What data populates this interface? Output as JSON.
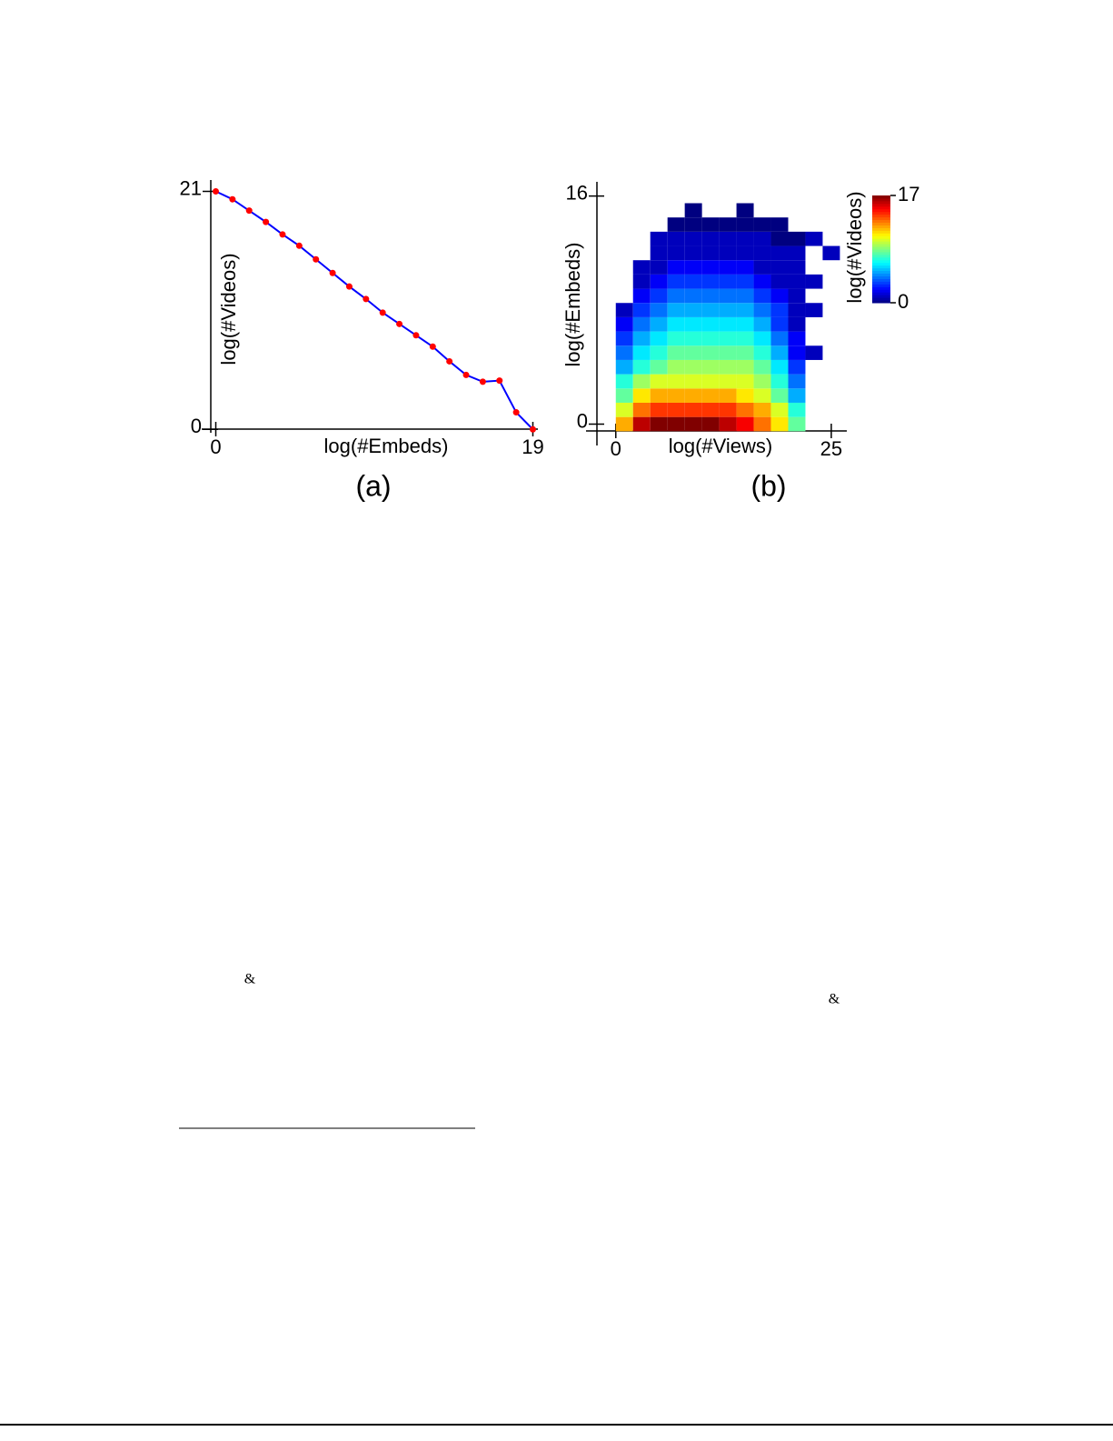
{
  "chart_data": [
    {
      "type": "line",
      "caption": "(a)",
      "x_label": "log(#Embeds)",
      "y_label": "log(#Videos)",
      "x": [
        0,
        1,
        2,
        3,
        4,
        5,
        6,
        7,
        8,
        9,
        10,
        11,
        12,
        13,
        14,
        15,
        16,
        17,
        18,
        19
      ],
      "series": [
        {
          "name": "log(#Videos)",
          "color": "#0000ff",
          "marker_color": "#ff0000",
          "values": [
            21,
            20.3,
            19.3,
            18.3,
            17.2,
            16.2,
            15,
            13.8,
            12.6,
            11.5,
            10.3,
            9.3,
            8.3,
            7.3,
            6,
            4.8,
            4.2,
            4.3,
            1.5,
            0
          ]
        }
      ],
      "xlim": [
        -0.3,
        19.3
      ],
      "ylim": [
        -0.3,
        22
      ],
      "xticks": [
        0,
        19
      ],
      "yticks": [
        0,
        21
      ]
    },
    {
      "type": "heatmap",
      "caption": "(b)",
      "x_label": "log(#Views)",
      "y_label": "log(#Embeds)",
      "colorbar_label": "log(#Videos)",
      "x_bins": [
        0,
        2,
        4,
        6,
        8,
        10,
        12,
        14,
        16,
        18,
        20,
        22,
        24,
        26
      ],
      "y_bins": [
        -0.5,
        0.5,
        1.5,
        2.5,
        3.5,
        4.5,
        5.5,
        6.5,
        7.5,
        8.5,
        9.5,
        10.5,
        11.5,
        12.5,
        13.5,
        14.5,
        15.5
      ],
      "values": [
        [
          12,
          16,
          17,
          17,
          17,
          17,
          16,
          15,
          13,
          11,
          8,
          null,
          null
        ],
        [
          10,
          13,
          14,
          14,
          14,
          14,
          14,
          13,
          12,
          10,
          7,
          null,
          null
        ],
        [
          8,
          11,
          12,
          12,
          12,
          12,
          12,
          11,
          10,
          8,
          5,
          null,
          null
        ],
        [
          7,
          9,
          10,
          10,
          10,
          10,
          10,
          10,
          9,
          7,
          4,
          null,
          null
        ],
        [
          5,
          7,
          8,
          9,
          9,
          9,
          9,
          9,
          8,
          6,
          3,
          null,
          null
        ],
        [
          4,
          6,
          7,
          8,
          8,
          8,
          8,
          8,
          7,
          5,
          2,
          1,
          null
        ],
        [
          3,
          5,
          6,
          7,
          7,
          7,
          7,
          7,
          6,
          4,
          2,
          null,
          null
        ],
        [
          2,
          4,
          5,
          6,
          6,
          6,
          6,
          6,
          5,
          3,
          1,
          null,
          null
        ],
        [
          1,
          3,
          4,
          5,
          5,
          5,
          5,
          5,
          4,
          3,
          1,
          1,
          null
        ],
        [
          null,
          2,
          3,
          4,
          4,
          4,
          4,
          4,
          3,
          2,
          1,
          null,
          null
        ],
        [
          null,
          1,
          2,
          3,
          3,
          3,
          3,
          3,
          2,
          1,
          1,
          1,
          null
        ],
        [
          null,
          1,
          1,
          2,
          2,
          2,
          2,
          2,
          1,
          1,
          1,
          null,
          null
        ],
        [
          null,
          null,
          1,
          1,
          1,
          1,
          1,
          1,
          1,
          1,
          1,
          null,
          1
        ],
        [
          null,
          null,
          1,
          1,
          1,
          1,
          1,
          1,
          1,
          0,
          0,
          1,
          null
        ],
        [
          null,
          null,
          null,
          0,
          0,
          0,
          0,
          0,
          0,
          0,
          null,
          null,
          null
        ],
        [
          null,
          null,
          null,
          null,
          0,
          null,
          null,
          0,
          null,
          null,
          null,
          null,
          null
        ]
      ],
      "colormap": "jet",
      "clim": [
        0,
        17
      ],
      "cticks": [
        0,
        17
      ],
      "xlim": [
        -2.4,
        26.8
      ],
      "ylim": [
        -1.5,
        17
      ],
      "xticks": [
        0,
        25
      ],
      "yticks": [
        0,
        16
      ]
    }
  ],
  "text_fragments": [
    "&",
    "&"
  ]
}
